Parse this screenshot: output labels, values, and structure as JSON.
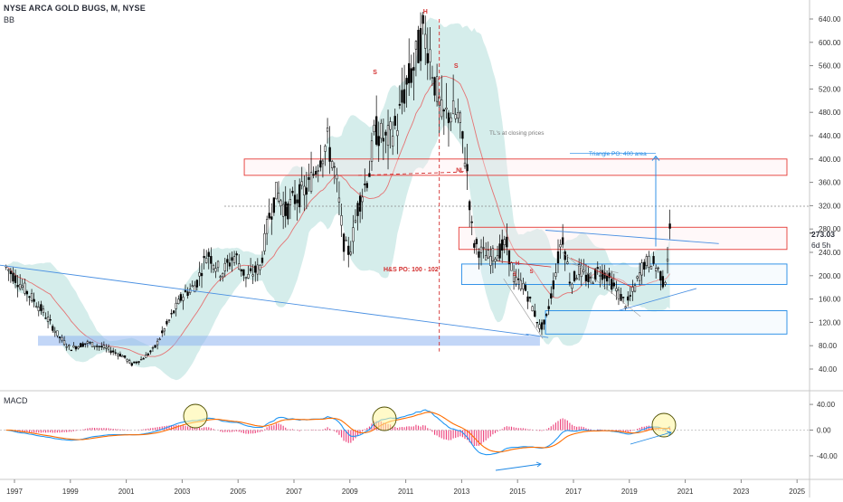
{
  "header": {
    "title": "NYSE ARCA GOLD BUGS, M, NYSE",
    "indicator_main": "BB",
    "indicator_lower": "MACD"
  },
  "price_axis": {
    "ticks": [
      40,
      80,
      120,
      160,
      200,
      240,
      280,
      320,
      360,
      400,
      440,
      480,
      520,
      560,
      600,
      640
    ],
    "tick_labels": [
      "40.00",
      "80.00",
      "120.00",
      "160.00",
      "200.00",
      "240.00",
      "280.00",
      "320.00",
      "360.00",
      "400.00",
      "440.00",
      "480.00",
      "520.00",
      "560.00",
      "600.00",
      "640.00"
    ],
    "last_price": "273.03",
    "countdown": "6d 5h"
  },
  "macd_axis": {
    "ticks": [
      -40,
      0,
      40
    ],
    "tick_labels": [
      "-40.00",
      "0.00",
      "40.00"
    ]
  },
  "time_axis": {
    "labels": [
      "1997",
      "1999",
      "2001",
      "2003",
      "2005",
      "2007",
      "2009",
      "2011",
      "2013",
      "2015",
      "2017",
      "2019",
      "2021",
      "2023",
      "2025"
    ]
  },
  "annotations": {
    "tl_note": "TL's at closing prices",
    "triangle_po": "Triangle PO: 400 area",
    "hs_po": "H&S PO: 100 - 102",
    "head_big": "H",
    "shoulder_left_big": "S",
    "shoulder_right_big": "S",
    "neckline_big": "NL",
    "head_small": "H",
    "shoulder_left_small": "S",
    "shoulder_right_small": "S"
  },
  "colors": {
    "up_candle": "#ffffff",
    "down_candle": "#000000",
    "bb_fill": "#b2dfdb",
    "bb_basis": "#e57373",
    "macd_line": "#2196f3",
    "signal_line": "#ff6d00",
    "hist_pos": "#e91e63",
    "hist_neg": "#e91e63",
    "trendline": "#4a90e2",
    "zone_red": "#e53935",
    "zone_blue": "#1e88e5",
    "support_band": "#90b4f0",
    "circle_fill": "#fff59d",
    "circle_stroke": "#4e4e00",
    "annotation_red": "#d32f2f",
    "annotation_blue": "#1e88e5",
    "annotation_grey": "#7a7a7a"
  },
  "chart_data": [
    {
      "type": "candlestick",
      "title": "NYSE ARCA GOLD BUGS, M, NYSE",
      "ylim": [
        40,
        660
      ],
      "x": [
        "1997",
        "1998",
        "1999",
        "2000",
        "2001",
        "2002",
        "2003",
        "2004",
        "2005",
        "2006",
        "2007",
        "2008",
        "2009",
        "2010",
        "2011",
        "2012",
        "2013",
        "2014",
        "2015",
        "2016",
        "2017",
        "2018",
        "2019",
        "2020"
      ],
      "close": [
        210,
        150,
        75,
        70,
        45,
        85,
        150,
        220,
        230,
        340,
        340,
        250,
        390,
        500,
        560,
        440,
        240,
        205,
        110,
        200,
        180,
        175,
        200,
        273.03
      ],
      "series_overlays": [
        "BB"
      ],
      "price_zones": [
        {
          "low": 372,
          "high": 400,
          "color": "red"
        },
        {
          "low": 245,
          "high": 283,
          "color": "red"
        },
        {
          "low": 185,
          "high": 220,
          "color": "blue"
        },
        {
          "low": 100,
          "high": 140,
          "color": "blue"
        },
        {
          "low": 80,
          "high": 97,
          "color": "blue-fill"
        }
      ]
    },
    {
      "type": "line",
      "title": "MACD",
      "ylim": [
        -70,
        60
      ],
      "x": [
        "1997",
        "1998",
        "1999",
        "2000",
        "2001",
        "2002",
        "2003",
        "2004",
        "2005",
        "2006",
        "2007",
        "2008",
        "2009",
        "2010",
        "2011",
        "2012",
        "2013",
        "2014",
        "2015",
        "2016",
        "2017",
        "2018",
        "2019",
        "2020"
      ],
      "series": [
        {
          "values": [
            -30,
            -28,
            -22,
            -14,
            -8,
            2,
            14,
            20,
            20,
            30,
            28,
            10,
            18,
            40,
            52,
            40,
            -5,
            -55,
            -60,
            -20,
            -2,
            -6,
            -2,
            10
          ]
        },
        {
          "values": [
            -28,
            -26,
            -23,
            -17,
            -10,
            0,
            10,
            18,
            22,
            26,
            30,
            16,
            12,
            28,
            46,
            44,
            10,
            -40,
            -55,
            -35,
            -10,
            -5,
            -5,
            4
          ]
        }
      ]
    }
  ]
}
